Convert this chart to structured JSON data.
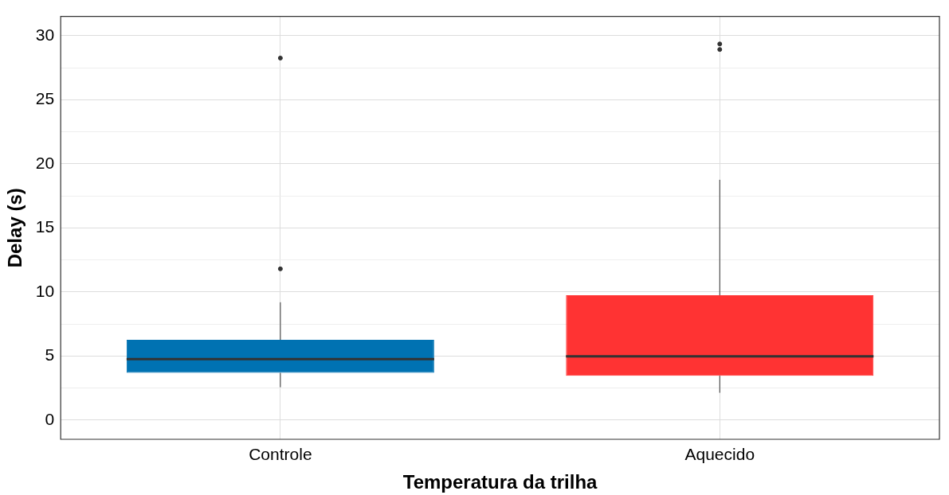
{
  "chart_data": {
    "type": "box",
    "xlabel": "Temperatura da trilha",
    "ylabel": "Delay (s)",
    "categories": [
      "Controle",
      "Aquecido"
    ],
    "colors": [
      "#0072b2",
      "#ff3333"
    ],
    "boxes": [
      {
        "low": 2.56,
        "q1": 3.68,
        "median": 4.75,
        "q3": 6.26,
        "high": 9.19,
        "outliers": [
          11.8,
          28.25
        ]
      },
      {
        "low": 2.13,
        "q1": 3.46,
        "median": 4.97,
        "q3": 9.74,
        "high": 18.75,
        "outliers": [
          28.92,
          29.35
        ]
      }
    ],
    "ylim": [
      -1.5,
      31.5
    ],
    "yticks": [
      0,
      {
        "value": 2.5,
        "label": null
      },
      5,
      {
        "value": 7.5,
        "label": null
      },
      10,
      {
        "value": 12.5,
        "label": null
      },
      15,
      {
        "value": 17.5,
        "label": null
      },
      20,
      {
        "value": 22.5,
        "label": null
      },
      25,
      {
        "value": 27.5,
        "label": null
      },
      30
    ],
    "grid": true
  }
}
